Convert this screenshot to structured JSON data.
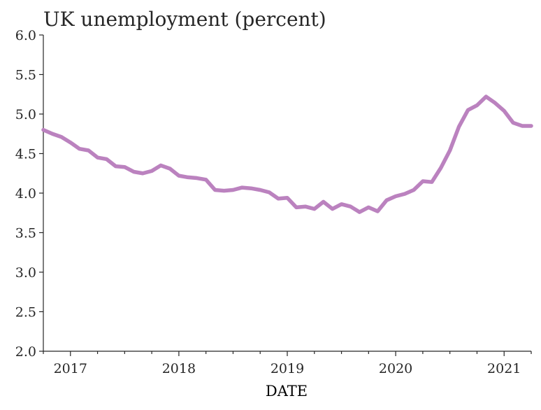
{
  "chart_data": {
    "type": "line",
    "title": "UK unemployment (percent)",
    "xlabel": "DATE",
    "ylabel": "",
    "ylim": [
      2.0,
      6.0
    ],
    "xlim": [
      "2016-10",
      "2021-04"
    ],
    "y_ticks": [
      "2.0",
      "2.5",
      "3.0",
      "3.5",
      "4.0",
      "4.5",
      "5.0",
      "5.5",
      "6.0"
    ],
    "x_ticks": [
      {
        "label": "2017",
        "date": "2017-01"
      },
      {
        "label": "2018",
        "date": "2018-01"
      },
      {
        "label": "2019",
        "date": "2019-01"
      },
      {
        "label": "2020",
        "date": "2020-01"
      },
      {
        "label": "2021",
        "date": "2021-01"
      }
    ],
    "grid": false,
    "line_color": "#bb82bf",
    "series": [
      {
        "dates": [
          "2016-10",
          "2016-11",
          "2016-12",
          "2017-01",
          "2017-02",
          "2017-03",
          "2017-04",
          "2017-05",
          "2017-06",
          "2017-07",
          "2017-08",
          "2017-09",
          "2017-10",
          "2017-11",
          "2017-12",
          "2018-01",
          "2018-02",
          "2018-03",
          "2018-04",
          "2018-05",
          "2018-06",
          "2018-07",
          "2018-08",
          "2018-09",
          "2018-10",
          "2018-11",
          "2018-12",
          "2019-01",
          "2019-02",
          "2019-03",
          "2019-04",
          "2019-05",
          "2019-06",
          "2019-07",
          "2019-08",
          "2019-09",
          "2019-10",
          "2019-11",
          "2019-12",
          "2020-01",
          "2020-02",
          "2020-03",
          "2020-04",
          "2020-05",
          "2020-06",
          "2020-07",
          "2020-08",
          "2020-09",
          "2020-10",
          "2020-11",
          "2020-12",
          "2021-01",
          "2021-02",
          "2021-03",
          "2021-04"
        ],
        "values": [
          4.8,
          4.75,
          4.71,
          4.64,
          4.56,
          4.54,
          4.45,
          4.43,
          4.34,
          4.33,
          4.27,
          4.25,
          4.28,
          4.35,
          4.31,
          4.22,
          4.2,
          4.19,
          4.17,
          4.04,
          4.03,
          4.04,
          4.07,
          4.06,
          4.04,
          4.01,
          3.93,
          3.94,
          3.82,
          3.83,
          3.8,
          3.89,
          3.8,
          3.86,
          3.83,
          3.76,
          3.82,
          3.77,
          3.91,
          3.96,
          3.99,
          4.04,
          4.15,
          4.14,
          4.32,
          4.54,
          4.84,
          5.05,
          5.11,
          5.22,
          5.14,
          5.04,
          4.89,
          4.85,
          4.85
        ]
      }
    ]
  }
}
